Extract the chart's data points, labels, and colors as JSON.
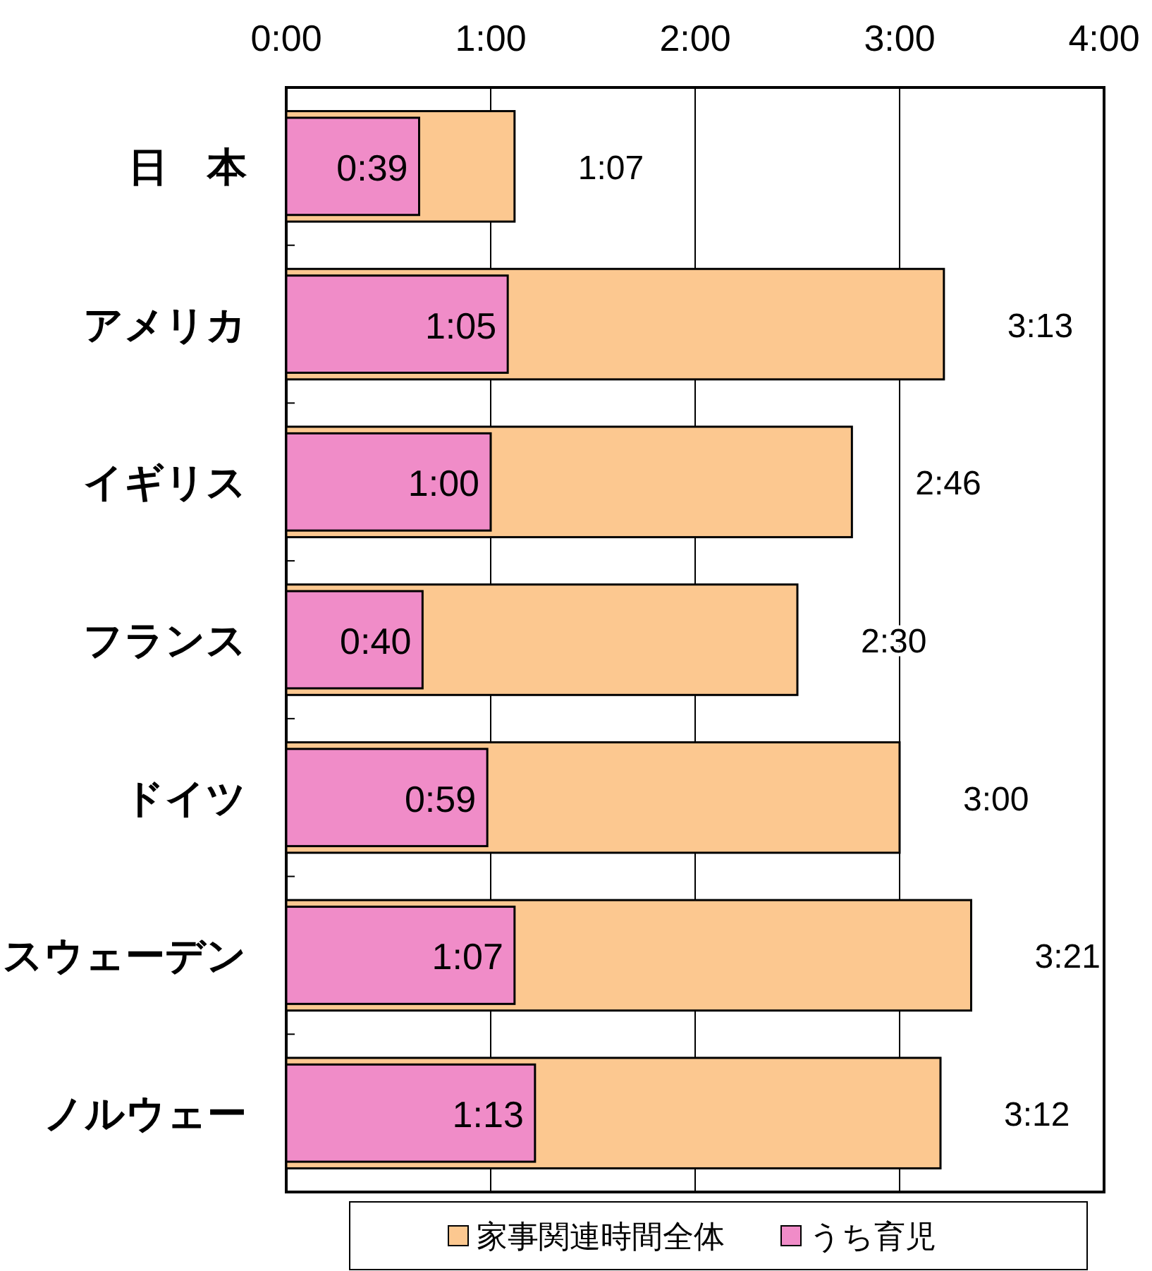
{
  "chart_data": {
    "type": "bar",
    "orientation": "horizontal",
    "categories": [
      "日　本",
      "アメリカ",
      "イギリス",
      "フランス",
      "ドイツ",
      "スウェーデン",
      "ノルウェー"
    ],
    "series": [
      {
        "name": "家事関連時間全体",
        "color": "#fcc890",
        "values": [
          67,
          193,
          166,
          150,
          180,
          201,
          192
        ],
        "value_labels": [
          "1:07",
          "3:13",
          "2:46",
          "2:30",
          "3:00",
          "3:21",
          "3:12"
        ]
      },
      {
        "name": "うち育児",
        "color": "#f08cc8",
        "values": [
          39,
          65,
          60,
          40,
          59,
          67,
          73
        ],
        "value_labels": [
          "0:39",
          "1:05",
          "1:00",
          "0:40",
          "0:59",
          "1:07",
          "1:13"
        ]
      }
    ],
    "xlim": [
      0,
      240
    ],
    "xticks": [
      {
        "value": 0,
        "label": "0:00"
      },
      {
        "value": 60,
        "label": "1:00"
      },
      {
        "value": 120,
        "label": "2:00"
      },
      {
        "value": 180,
        "label": "3:00"
      },
      {
        "value": 240,
        "label": "4:00"
      }
    ],
    "grid": "x",
    "legend": "bottom"
  }
}
